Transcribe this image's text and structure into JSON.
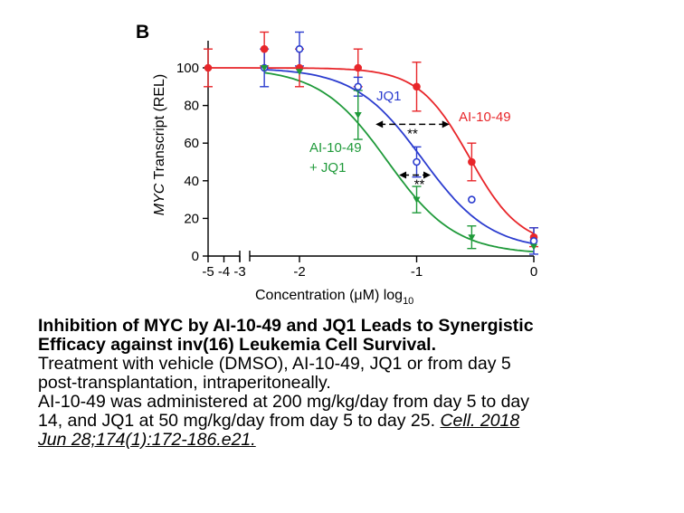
{
  "panel_label": "B",
  "chart_data": {
    "type": "line",
    "ylabel_italic": "MYC",
    "ylabel_rest": " Transcript (REL)",
    "xlabel_main": "Concentration (μM) log",
    "xlabel_sub": "10",
    "ylim": [
      0,
      110
    ],
    "y_ticks": [
      0,
      20,
      40,
      60,
      80,
      100
    ],
    "x_ticks": [
      {
        "x": -5,
        "label": "-5"
      },
      {
        "x": -4,
        "label": "-4"
      },
      {
        "x": -3,
        "label": "-3"
      },
      {
        "x": -2,
        "label": "-2"
      },
      {
        "x": -1,
        "label": "-1"
      },
      {
        "x": 0,
        "label": "0"
      }
    ],
    "axis_break": true,
    "grid": false,
    "series": [
      {
        "name": "AI-10-49",
        "color": "#e8262a",
        "marker": "filled-circle",
        "points": [
          {
            "x": -5,
            "y": 100,
            "err": 10
          },
          {
            "x": -2.3,
            "y": 110,
            "err": 9
          },
          {
            "x": -2,
            "y": 100,
            "err": 10
          },
          {
            "x": -1.5,
            "y": 100,
            "err": 10
          },
          {
            "x": -1,
            "y": 90,
            "err": 13
          },
          {
            "x": -0.53,
            "y": 50,
            "err": 10
          },
          {
            "x": 0,
            "y": 10,
            "err": 5
          }
        ],
        "curve": {
          "top": 100,
          "bottom": 5,
          "ec50": -0.55,
          "hill": 2
        }
      },
      {
        "name": "JQ1",
        "color": "#2b3ccf",
        "marker": "open-circle",
        "points": [
          {
            "x": -2.3,
            "y": 100,
            "err": 10
          },
          {
            "x": -2,
            "y": 110,
            "err": 9
          },
          {
            "x": -1.5,
            "y": 90,
            "err": 5
          },
          {
            "x": -1,
            "y": 50,
            "err": 8
          },
          {
            "x": -0.53,
            "y": 30,
            "err": 0
          },
          {
            "x": 0,
            "y": 8,
            "err": 7
          }
        ],
        "curve": {
          "top": 100,
          "bottom": 3,
          "ec50": -0.95,
          "hill": 1.5
        }
      },
      {
        "name": "AI-10-49 + JQ1",
        "color": "#1f9a3a",
        "marker": "filled-triangle-down",
        "points": [
          {
            "x": -2.3,
            "y": 100,
            "err": 0
          },
          {
            "x": -2,
            "y": 98,
            "err": 0
          },
          {
            "x": -1.5,
            "y": 75,
            "err": 13
          },
          {
            "x": -1,
            "y": 30,
            "err": 7
          },
          {
            "x": -0.53,
            "y": 10,
            "err": 6
          },
          {
            "x": 0,
            "y": 5,
            "err": 0
          }
        ],
        "curve": {
          "top": 100,
          "bottom": 1,
          "ec50": -1.25,
          "hill": 1.5
        }
      }
    ],
    "annotations": [
      {
        "text": "**",
        "arrow_from": -1.35,
        "arrow_to": -0.72,
        "y": 70
      },
      {
        "text": "**",
        "arrow_from": -1.15,
        "arrow_to": -0.88,
        "y": 43
      }
    ],
    "series_labels": {
      "red": "AI-10-49",
      "blue": "JQ1",
      "green_line1": "AI-10-49",
      "green_line2": "+ JQ1"
    }
  },
  "caption": {
    "title_line1": "Inhibition of MYC by AI-10-49 and JQ1 Leads to Synergistic",
    "title_line2": "Efficacy against inv(16) Leukemia Cell Survival.",
    "line1": "Treatment with vehicle (DMSO), AI-10-49, JQ1 or from day 5",
    "line2": "post-transplantation, intraperitoneally.",
    "line3": "AI-10-49 was administered at 200 mg/kg/day from day 5 to day",
    "line4_text": "14, and JQ1 at 50 mg/kg/day from day 5 to day 25. ",
    "line4_cite": "Cell. 2018",
    "line5_cite": "Jun 28;174(1):172-186.e21."
  }
}
